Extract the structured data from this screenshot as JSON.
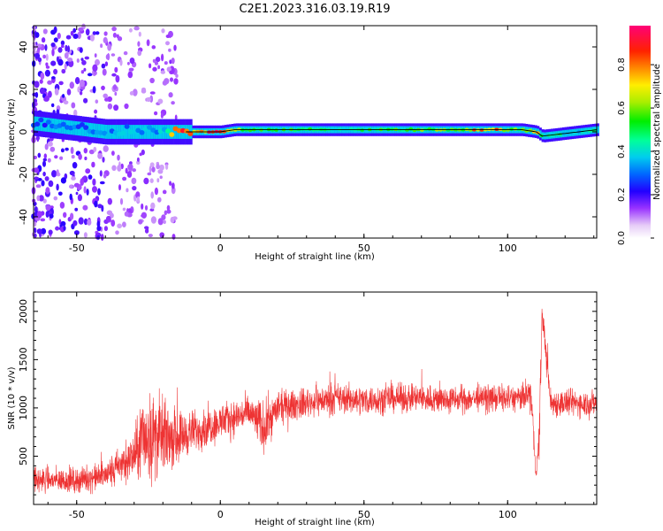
{
  "title": "C2E1.2023.316.03.19.R19",
  "chart_data": [
    {
      "type": "heatmap",
      "xlabel": "Height of straight line (km)",
      "ylabel": "Frequency (Hz)",
      "xlim": [
        -65,
        131
      ],
      "ylim": [
        -50,
        50
      ],
      "xticks": [
        -50,
        0,
        50,
        100
      ],
      "yticks": [
        -40,
        -20,
        0,
        20,
        40
      ],
      "colorbar": {
        "label": "Normalized spectral amplitude",
        "range": [
          0,
          0.98
        ],
        "ticks": [
          0.0,
          0.2,
          0.4,
          0.6,
          0.8
        ],
        "tick_labels": [
          "0.0",
          "0.2",
          "0.4",
          "0.6",
          "0.8"
        ],
        "colormap": "rainbow (white-violet-blue-cyan-green-yellow-red-pink)"
      },
      "ridge": [
        {
          "x": -65,
          "freq": 4,
          "amp": 0.3
        },
        {
          "x": -40,
          "freq": 0,
          "amp": 0.35
        },
        {
          "x": -20,
          "freq": 0,
          "amp": 0.4
        },
        {
          "x": -15,
          "freq": 0,
          "amp": 0.85
        },
        {
          "x": 0,
          "freq": 0,
          "amp": 0.9
        },
        {
          "x": 5,
          "freq": 1,
          "amp": 0.7
        },
        {
          "x": 20,
          "freq": 1,
          "amp": 0.55
        },
        {
          "x": 40,
          "freq": 1,
          "amp": 0.5
        },
        {
          "x": 60,
          "freq": 1,
          "amp": 0.55
        },
        {
          "x": 80,
          "freq": 1,
          "amp": 0.65
        },
        {
          "x": 95,
          "freq": 1,
          "amp": 0.9
        },
        {
          "x": 105,
          "freq": 1,
          "amp": 0.55
        },
        {
          "x": 110,
          "freq": 0,
          "amp": 0.85
        },
        {
          "x": 112,
          "freq": -2,
          "amp": 0.45
        },
        {
          "x": 131,
          "freq": 1,
          "amp": 0.45
        }
      ]
    },
    {
      "type": "line",
      "xlabel": "Height of straight line (km)",
      "ylabel": "SNR (10 * v/v)",
      "xlim": [
        -65,
        131
      ],
      "ylim": [
        0,
        2200
      ],
      "xticks": [
        -50,
        0,
        50,
        100
      ],
      "yticks": [
        500,
        1000,
        1500,
        2000
      ],
      "series": [
        {
          "color": "#ee3333",
          "x": [
            -65,
            -50,
            -40,
            -30,
            -27,
            -22,
            -15,
            -10,
            -5,
            0,
            5,
            10,
            15,
            20,
            30,
            40,
            50,
            60,
            70,
            80,
            90,
            100,
            105,
            108,
            110,
            111,
            112,
            115,
            120,
            131
          ],
          "y": [
            250,
            250,
            300,
            500,
            700,
            700,
            700,
            750,
            800,
            850,
            900,
            950,
            800,
            1000,
            1050,
            1100,
            1080,
            1100,
            1100,
            1080,
            1100,
            1100,
            1100,
            1150,
            300,
            700,
            2000,
            1050,
            1050,
            1050
          ],
          "noise": [
            200,
            180,
            220,
            350,
            700,
            650,
            400,
            320,
            300,
            280,
            270,
            260,
            400,
            250,
            220,
            230,
            220,
            210,
            220,
            210,
            200,
            210,
            200,
            300,
            100,
            400,
            200,
            220,
            210,
            200
          ]
        }
      ]
    }
  ]
}
